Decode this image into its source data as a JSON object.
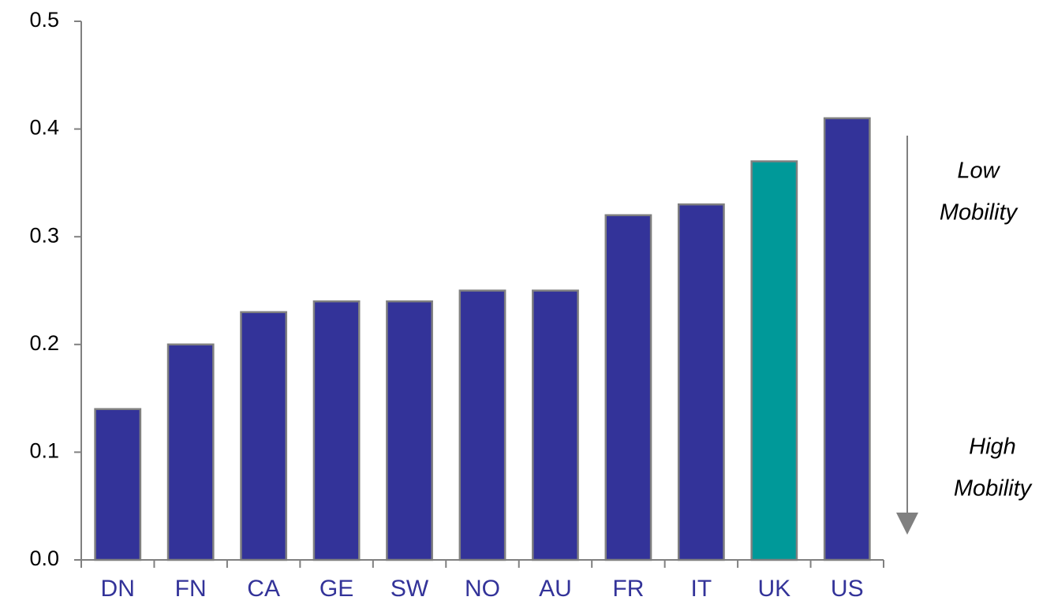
{
  "chart_data": {
    "type": "bar",
    "categories": [
      "DN",
      "FN",
      "CA",
      "GE",
      "SW",
      "NO",
      "AU",
      "FR",
      "IT",
      "UK",
      "US"
    ],
    "values": [
      0.14,
      0.2,
      0.23,
      0.24,
      0.24,
      0.25,
      0.25,
      0.32,
      0.33,
      0.37,
      0.41
    ],
    "colors": [
      "#333399",
      "#333399",
      "#333399",
      "#333399",
      "#333399",
      "#333399",
      "#333399",
      "#333399",
      "#333399",
      "#009999",
      "#333399"
    ],
    "ylim": [
      0,
      0.5
    ],
    "yticks": [
      {
        "value": 0,
        "label": "0.0"
      },
      0.1,
      0.2,
      0.3,
      0.4,
      0.5
    ],
    "annotations": [
      [
        "Low",
        "Mobility"
      ],
      [
        "High",
        "Mobility"
      ]
    ]
  }
}
